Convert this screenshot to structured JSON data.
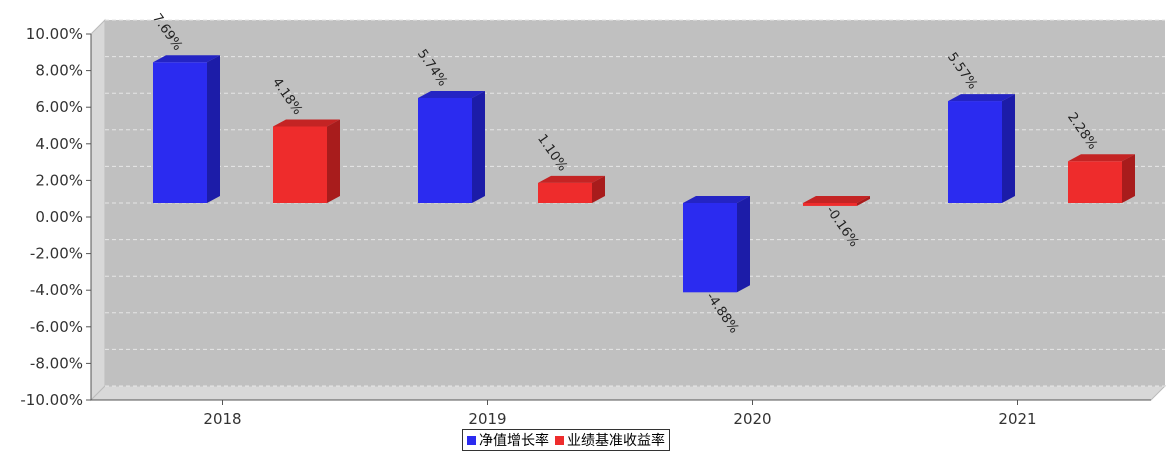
{
  "title": "",
  "chart_data": {
    "type": "bar",
    "title": "",
    "xlabel": "",
    "ylabel": "",
    "categories": [
      "2018",
      "2019",
      "2020",
      "2021"
    ],
    "series": [
      {
        "name": "净值增长率",
        "color": "#2b2bf0",
        "side_color": "#1c1ca8",
        "top_color": "#2424c4",
        "values": [
          7.69,
          5.74,
          -4.88,
          5.57
        ],
        "labels": [
          "7.69%",
          "5.74%",
          "-4.88%",
          "5.57%"
        ]
      },
      {
        "name": "业绩基准收益率",
        "color": "#ee2c2c",
        "side_color": "#a81c1c",
        "top_color": "#c42424",
        "values": [
          4.18,
          1.1,
          -0.16,
          2.28
        ],
        "labels": [
          "4.18%",
          "1.10%",
          "-0.16%",
          "2.28%"
        ]
      }
    ],
    "ylim": [
      -10,
      10
    ],
    "yticks": [
      10,
      8,
      6,
      4,
      2,
      0,
      -2,
      -4,
      -6,
      -8,
      -10
    ],
    "ytick_labels": [
      "10.00%",
      "8.00%",
      "6.00%",
      "4.00%",
      "2.00%",
      "0.00%",
      "-2.00%",
      "-4.00%",
      "-6.00%",
      "-8.00%",
      "-10.00%"
    ],
    "grid": true,
    "legend_position": "bottom-center",
    "plot_background": "#c0c0c0"
  }
}
